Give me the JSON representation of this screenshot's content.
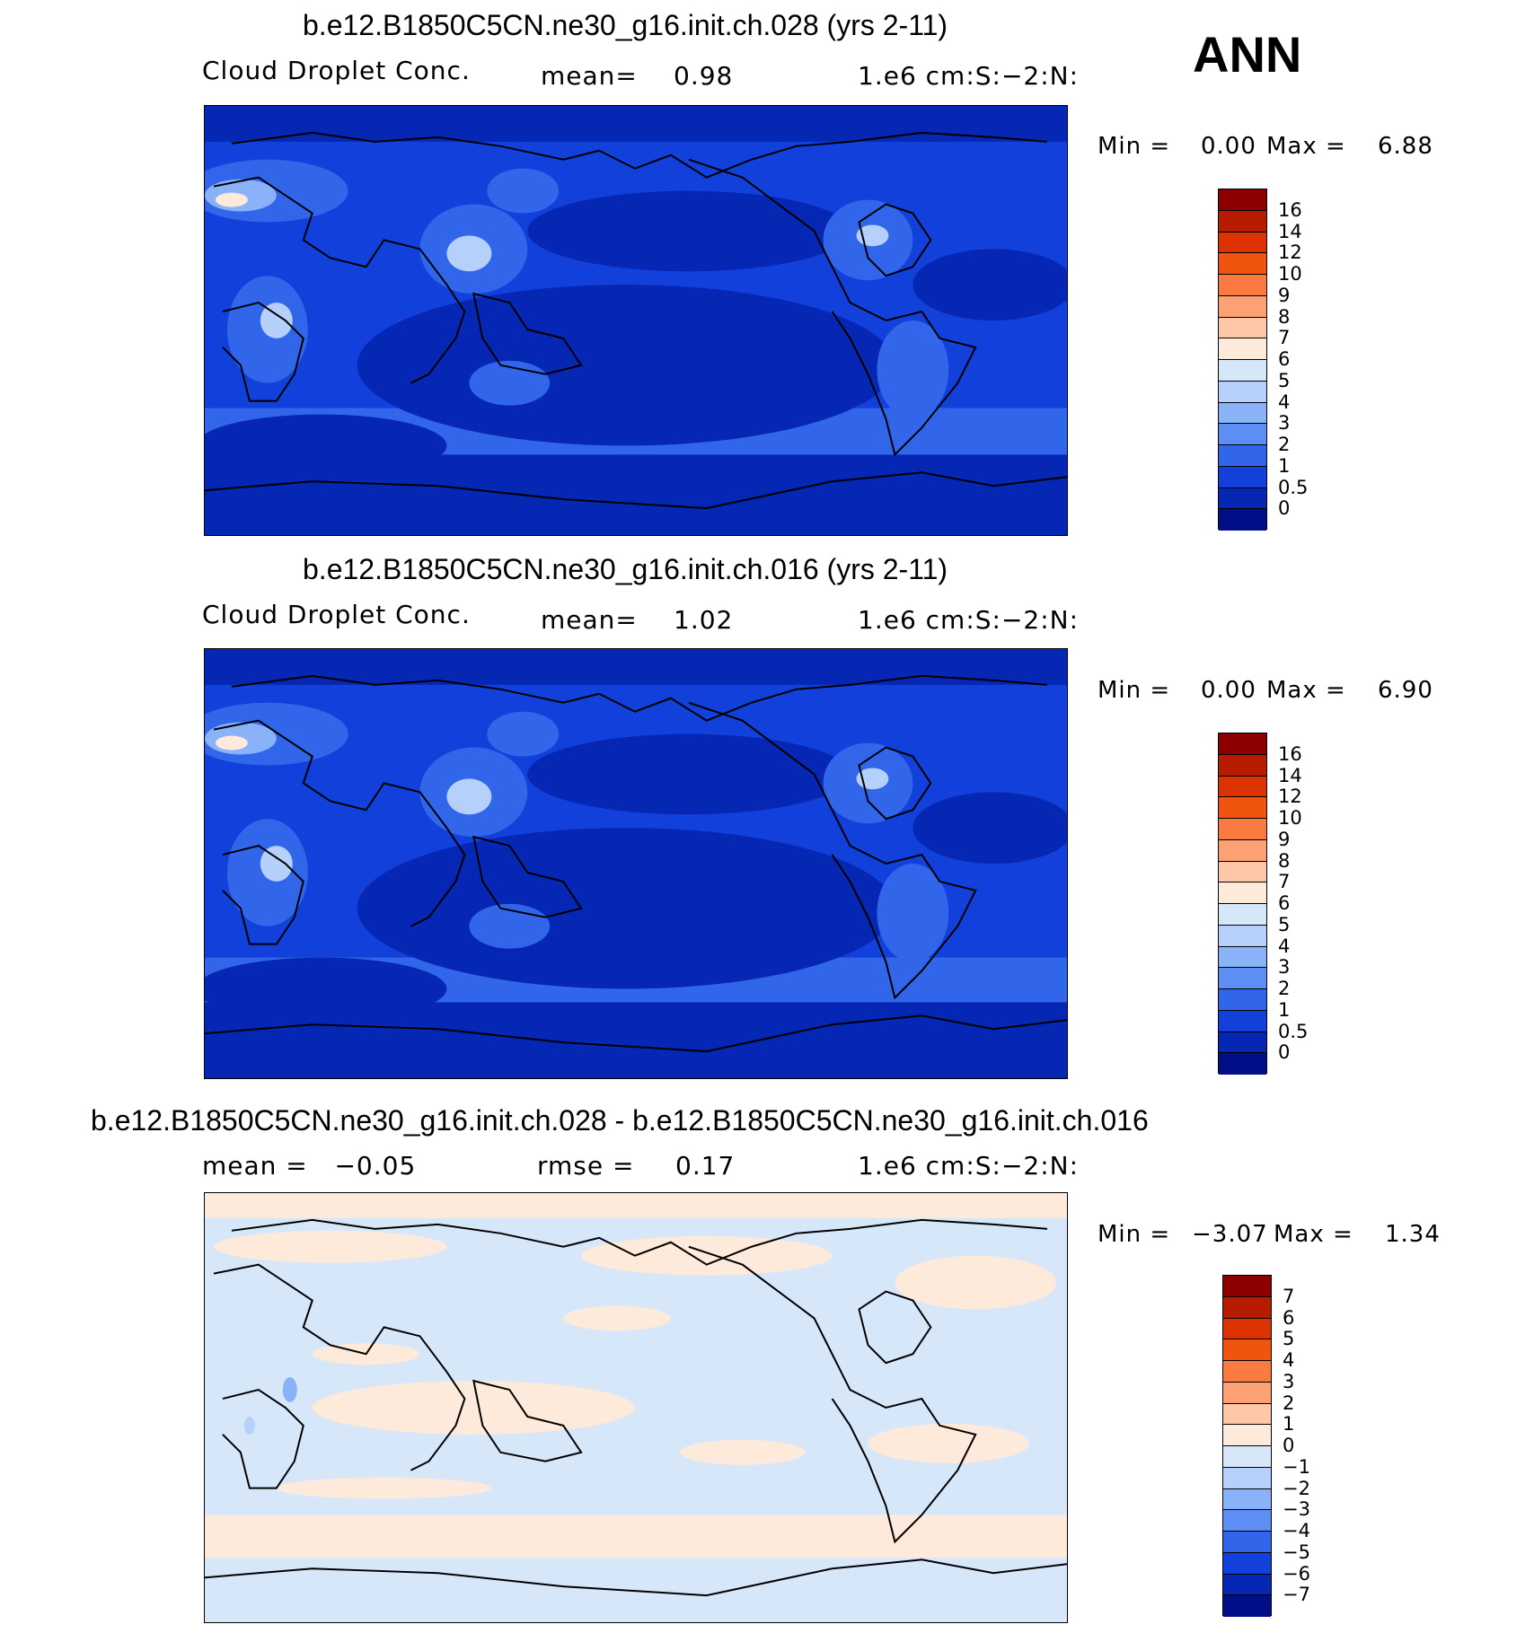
{
  "season": "ANN",
  "panels": [
    {
      "title": "b.e12.B1850C5CN.ne30_g16.init.ch.028 (yrs 2-11)",
      "left": "Cloud Droplet Conc.",
      "mid_label": "mean=",
      "mid_value": "0.98",
      "units": "1.e6 cm:S:−2:N:",
      "min_label": "Min =",
      "min_value": "0.00",
      "max_label": "Max =",
      "max_value": "6.88"
    },
    {
      "title": "b.e12.B1850C5CN.ne30_g16.init.ch.016 (yrs 2-11)",
      "left": "Cloud Droplet Conc.",
      "mid_label": "mean=",
      "mid_value": "1.02",
      "units": "1.e6 cm:S:−2:N:",
      "min_label": "Min =",
      "min_value": "0.00",
      "max_label": "Max =",
      "max_value": "6.90"
    },
    {
      "title": "b.e12.B1850C5CN.ne30_g16.init.ch.028 - b.e12.B1850C5CN.ne30_g16.init.ch.016",
      "left": "mean =   −0.05",
      "mid_label": "rmse =",
      "mid_value": "0.17",
      "units": "1.e6 cm:S:−2:N:",
      "min_label": "Min =",
      "min_value": "−3.07",
      "max_label": "Max =",
      "max_value": "1.34"
    }
  ],
  "colorbar_abs": {
    "labels": [
      "16",
      "14",
      "12",
      "10",
      "9",
      "8",
      "7",
      "6",
      "5",
      "4",
      "3",
      "2",
      "1",
      "0.5",
      "0"
    ],
    "colors": [
      "#8c0000",
      "#b81c00",
      "#dc3300",
      "#f05510",
      "#fa7a42",
      "#fba173",
      "#fdc8a8",
      "#fdeada",
      "#d7e7fa",
      "#b4d0fb",
      "#8ab2f8",
      "#5c8ef3",
      "#3266ea",
      "#1240db",
      "#0626b4",
      "#000f88"
    ]
  },
  "colorbar_diff": {
    "labels": [
      "7",
      "6",
      "5",
      "4",
      "3",
      "2",
      "1",
      "0",
      "−1",
      "−2",
      "−3",
      "−4",
      "−5",
      "−6",
      "−7"
    ],
    "colors": [
      "#8c0000",
      "#b81c00",
      "#dc3300",
      "#f05510",
      "#fa7a42",
      "#fba173",
      "#fdc8a8",
      "#fdeada",
      "#d7e7fa",
      "#b4d0fb",
      "#8ab2f8",
      "#5c8ef3",
      "#3266ea",
      "#1240db",
      "#0626b4",
      "#000f88"
    ]
  }
}
